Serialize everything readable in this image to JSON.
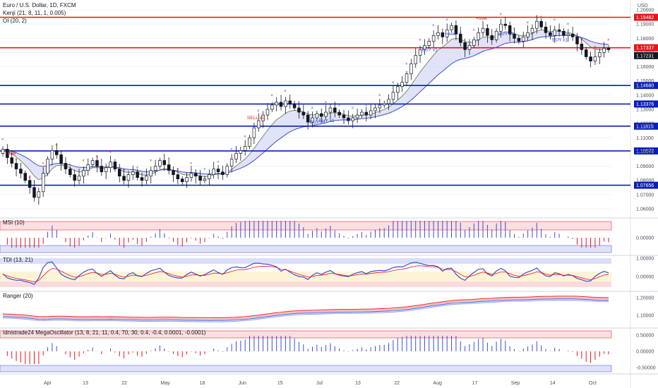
{
  "header": {
    "symbol": "Euro / U.S. Dollar, 1D, FXCM",
    "indicator_1": "Kenji (21, 8, 11, 1, 0.005)",
    "indicator_2": "OI (20, 2)"
  },
  "currency_label": "USD",
  "chart_data": {
    "type": "candlestick",
    "x_labels": [
      "Apr",
      "13",
      "22",
      "May",
      "18",
      "Jun",
      "15",
      "Jul",
      "13",
      "22",
      "Aug",
      "17",
      "Sep",
      "14",
      "Oct"
    ],
    "price_axis": {
      "ticks": [
        "1.20000",
        "1.19000",
        "1.18000",
        "1.17000",
        "1.16000",
        "1.15000",
        "1.14000",
        "1.13000",
        "1.12000",
        "1.11000",
        "1.10000",
        "1.09000",
        "1.08000",
        "1.07000",
        "1.06000"
      ],
      "range": [
        1.055,
        1.205
      ]
    },
    "horizontal_levels": [
      {
        "value": "1.19482",
        "color": "#e8151b"
      },
      {
        "value": "1.17337",
        "color": "#e8151b"
      },
      {
        "value": "1.14680",
        "color": "#0b1fb8"
      },
      {
        "value": "1.13376",
        "color": "#0b1fb8"
      },
      {
        "value": "1.11815",
        "color": "#0b1fb8"
      },
      {
        "value": "1.10072",
        "color": "#0b1fb8"
      },
      {
        "value": "1.07656",
        "color": "#0b1fb8"
      }
    ],
    "last_price": "1.17231",
    "close_series": [
      1.102,
      1.096,
      1.092,
      1.088,
      1.085,
      1.08,
      1.075,
      1.068,
      1.072,
      1.085,
      1.095,
      1.101,
      1.098,
      1.092,
      1.088,
      1.084,
      1.08,
      1.083,
      1.087,
      1.091,
      1.094,
      1.09,
      1.086,
      1.089,
      1.093,
      1.088,
      1.083,
      1.08,
      1.084,
      1.086,
      1.082,
      1.08,
      1.083,
      1.087,
      1.09,
      1.094,
      1.091,
      1.087,
      1.084,
      1.081,
      1.079,
      1.082,
      1.085,
      1.083,
      1.08,
      1.081,
      1.084,
      1.088,
      1.086,
      1.084,
      1.09,
      1.095,
      1.099,
      1.101,
      1.104,
      1.11,
      1.117,
      1.122,
      1.126,
      1.13,
      1.133,
      1.135,
      1.132,
      1.136,
      1.134,
      1.131,
      1.128,
      1.126,
      1.121,
      1.124,
      1.127,
      1.125,
      1.128,
      1.131,
      1.128,
      1.126,
      1.124,
      1.122,
      1.124,
      1.126,
      1.128,
      1.126,
      1.129,
      1.131,
      1.133,
      1.134,
      1.137,
      1.142,
      1.146,
      1.149,
      1.155,
      1.162,
      1.168,
      1.172,
      1.175,
      1.178,
      1.182,
      1.184,
      1.181,
      1.186,
      1.189,
      1.183,
      1.177,
      1.172,
      1.175,
      1.179,
      1.184,
      1.187,
      1.182,
      1.179,
      1.185,
      1.19,
      1.189,
      1.183,
      1.18,
      1.178,
      1.181,
      1.184,
      1.187,
      1.192,
      1.188,
      1.184,
      1.182,
      1.186,
      1.185,
      1.182,
      1.183,
      1.181,
      1.176,
      1.172,
      1.167,
      1.164,
      1.167,
      1.17,
      1.173,
      1.172
    ],
    "panels": [
      {
        "name": "MSI (10)",
        "ticks": [
          "0.00000"
        ]
      },
      {
        "name": "TDI (13, 21)",
        "ticks": [
          "1.00000",
          "0.00000"
        ]
      },
      {
        "name": "Ranger (20)",
        "ticks": [
          "1.20000",
          "1.10000"
        ]
      },
      {
        "name": "Idnistrade24 MegaOscillator (13, 8, 21, 11, 0.4, 70, 30, 0.4, -0.4, 0.0001, -0.0001)",
        "ticks": [
          "0.50000",
          "0.00000",
          "-0.50000"
        ]
      }
    ],
    "annotations": [
      {
        "text": "SELL x1",
        "color": "#e8151b",
        "index": 56
      },
      {
        "text": "BUY x1",
        "color": "#2a3fd8",
        "index": 70
      },
      {
        "text": "BUY x1",
        "color": "#2a3fd8",
        "index": 72
      },
      {
        "text": "BUY x1",
        "color": "#2a3fd8",
        "index": 95
      },
      {
        "text": "BUY x1",
        "color": "#2a3fd8",
        "index": 112
      },
      {
        "text": "BUY x1",
        "color": "#2a3fd8",
        "index": 124
      },
      {
        "text": "SELL x1",
        "color": "#e8151b",
        "index": 142
      },
      {
        "text": "+over",
        "color": "#e8151b",
        "index": 2
      },
      {
        "text": "+over",
        "color": "#2a3fd8",
        "index": 100
      },
      {
        "text": "+over",
        "color": "#e8151b",
        "index": 107
      }
    ]
  }
}
